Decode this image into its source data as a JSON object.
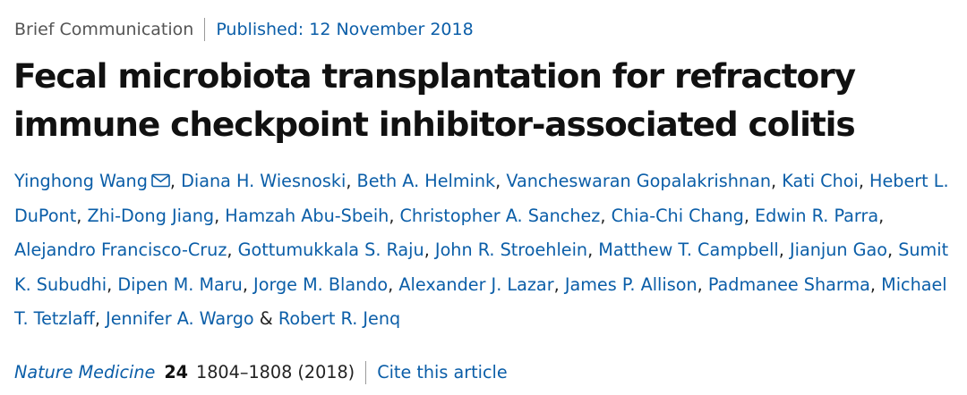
{
  "header": {
    "article_type": "Brief Communication",
    "published_label": "Published:",
    "published_date": "12 November 2018"
  },
  "title": {
    "line1": "Fecal microbiota transplantation for refractory",
    "line2": "immune checkpoint inhibitor-associated colitis"
  },
  "authors": {
    "list": [
      "Yinghong Wang",
      "Diana H. Wiesnoski",
      "Beth A. Helmink",
      "Vancheswaran Gopalakrishnan",
      "Kati Choi",
      "Hebert L. DuPont",
      "Zhi-Dong Jiang",
      "Hamzah Abu-Sbeih",
      "Christopher A. Sanchez",
      "Chia-Chi Chang",
      "Edwin R. Parra",
      "Alejandro Francisco-Cruz",
      "Gottumukkala S. Raju",
      "John R. Stroehlein",
      "Matthew T. Campbell",
      "Jianjun Gao",
      "Sumit K. Subudhi",
      "Dipen M. Maru",
      "Jorge M. Blando",
      "Alexander J. Lazar",
      "James P. Allison",
      "Padmanee Sharma",
      "Michael T. Tetzlaff",
      "Jennifer A. Wargo",
      "Robert R. Jenq"
    ],
    "separator": ",",
    "last_separator": "&",
    "corresponding_icon": "envelope-icon"
  },
  "citation": {
    "journal": "Nature Medicine",
    "volume": "24",
    "pages_year": "1804–1808 (2018)",
    "cite_label": "Cite this article"
  },
  "colors": {
    "link": "#0b5ea8",
    "text": "#222222",
    "muted": "#555555",
    "separator": "#9a9a9a"
  }
}
